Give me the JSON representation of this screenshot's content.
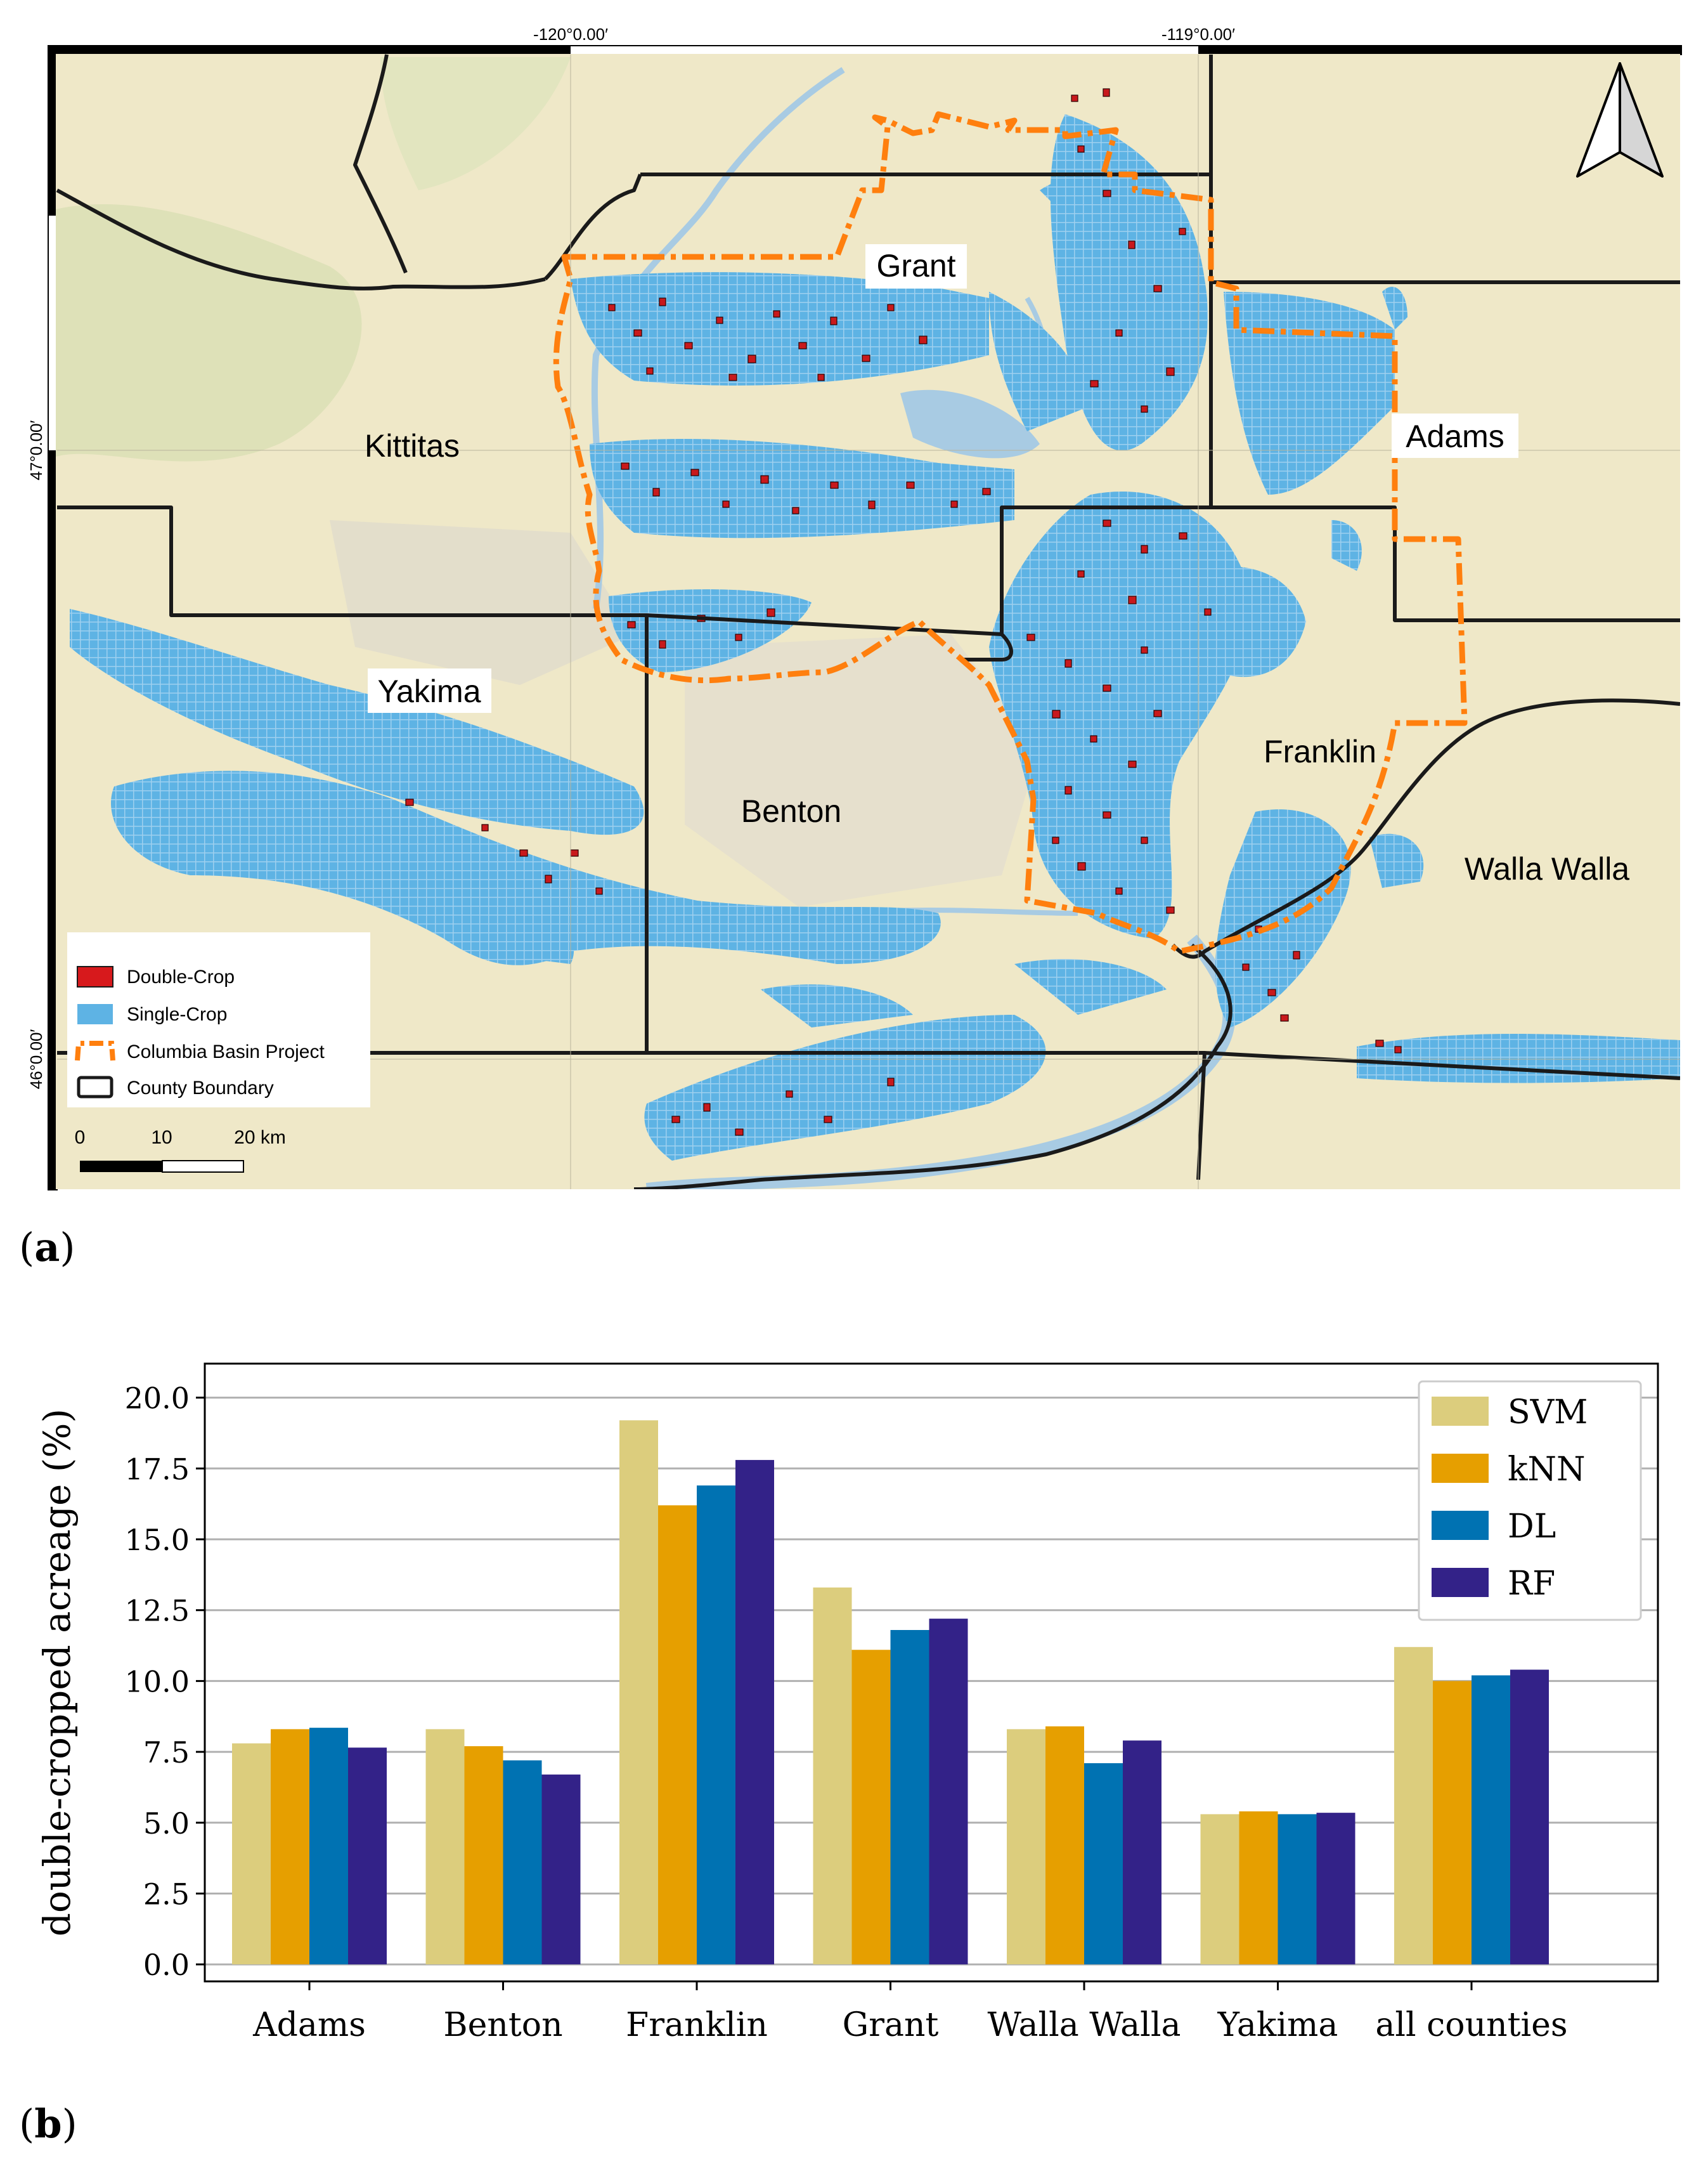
{
  "panel_a": {
    "label_open": "(",
    "label_letter": "a",
    "label_close": ")",
    "coordinates": {
      "lon_w120": "-120°0.00′",
      "lon_w119": "-119°0.00′",
      "lat_47": "47°0.00′",
      "lat_46": "46°0.00′"
    },
    "counties": [
      "Grant",
      "Kittitas",
      "Adams",
      "Yakima",
      "Benton",
      "Franklin",
      "Walla Walla"
    ],
    "legend": {
      "double_crop": "Double-Crop",
      "single_crop": "Single-Crop",
      "cbp": "Columbia Basin Project",
      "county_boundary": "County Boundary"
    },
    "scale_bar": {
      "ticks": [
        "0",
        "10",
        "20 km"
      ]
    },
    "north_arrow": "north-arrow-icon",
    "colors": {
      "double_crop": "#d7191c",
      "single_crop": "#5eb3e4",
      "cbp": "#ff7f0e",
      "boundary": "#1a1a1a",
      "land": "#efe8c8",
      "water": "#a8cbe3"
    }
  },
  "panel_b": {
    "label_open": "(",
    "label_letter": "b",
    "label_close": ")"
  },
  "chart_data": {
    "type": "bar",
    "title": "",
    "xlabel": "",
    "ylabel": "double-cropped acreage (%)",
    "categories": [
      "Adams",
      "Benton",
      "Franklin",
      "Grant",
      "Walla Walla",
      "Yakima",
      "all counties"
    ],
    "ylim": [
      -0.6,
      21.2
    ],
    "yticks": [
      "0.0",
      "2.5",
      "5.0",
      "7.5",
      "10.0",
      "12.5",
      "15.0",
      "17.5",
      "20.0"
    ],
    "grid": true,
    "legend_position": "top-right",
    "series": [
      {
        "name": "SVM",
        "color": "#dccd7d",
        "values": [
          7.8,
          8.3,
          19.2,
          13.3,
          8.3,
          5.3,
          11.2
        ]
      },
      {
        "name": "kNN",
        "color": "#e69f00",
        "values": [
          8.3,
          7.7,
          16.2,
          11.1,
          8.4,
          5.4,
          10.0
        ]
      },
      {
        "name": "DL",
        "color": "#0072b2",
        "values": [
          8.35,
          7.2,
          16.9,
          11.8,
          7.1,
          5.3,
          10.2
        ]
      },
      {
        "name": "RF",
        "color": "#332288",
        "values": [
          7.65,
          6.7,
          17.8,
          12.2,
          7.9,
          5.35,
          10.4
        ]
      }
    ]
  }
}
